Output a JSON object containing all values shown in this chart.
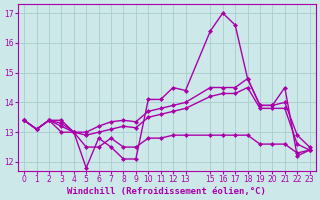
{
  "background_color": "#cce8e8",
  "grid_color": "#aacccc",
  "line_color": "#aa00aa",
  "marker": "D",
  "markersize": 2,
  "linewidth": 1.0,
  "xlabel": "Windchill (Refroidissement éolien,°C)",
  "xlabel_fontsize": 6.5,
  "tick_fontsize": 5.5,
  "xlim": [
    -0.5,
    23.5
  ],
  "ylim": [
    11.7,
    17.3
  ],
  "yticks": [
    12,
    13,
    14,
    15,
    16,
    17
  ],
  "xtick_positions": [
    0,
    1,
    2,
    3,
    4,
    5,
    6,
    7,
    8,
    9,
    10,
    11,
    12,
    13,
    15,
    16,
    17,
    18,
    19,
    20,
    21,
    22,
    23
  ],
  "xtick_labels": [
    "0",
    "1",
    "2",
    "3",
    "4",
    "5",
    "6",
    "7",
    "8",
    "9",
    "10",
    "11",
    "12",
    "13",
    "15",
    "16",
    "17",
    "18",
    "19",
    "20",
    "21",
    "22",
    "23"
  ],
  "series": [
    {
      "x": [
        0,
        1,
        2,
        3,
        4,
        5,
        6,
        7,
        8,
        9,
        10,
        11,
        12,
        13,
        15,
        16,
        17,
        18,
        19,
        20,
        21,
        22,
        23
      ],
      "y": [
        13.4,
        13.1,
        13.4,
        13.4,
        13.0,
        11.8,
        12.8,
        12.5,
        12.1,
        12.1,
        14.1,
        14.1,
        14.5,
        14.4,
        16.4,
        17.0,
        16.6,
        14.8,
        13.9,
        13.9,
        14.5,
        12.2,
        12.4
      ]
    },
    {
      "x": [
        0,
        1,
        2,
        3,
        4,
        5,
        6,
        7,
        8,
        9,
        10,
        11,
        12,
        13,
        15,
        16,
        17,
        18,
        19,
        20,
        21,
        22,
        23
      ],
      "y": [
        13.4,
        13.1,
        13.4,
        13.3,
        13.0,
        13.0,
        13.2,
        13.35,
        13.4,
        13.35,
        13.7,
        13.8,
        13.9,
        14.0,
        14.5,
        14.5,
        14.5,
        14.8,
        13.9,
        13.9,
        14.0,
        12.9,
        12.5
      ]
    },
    {
      "x": [
        0,
        1,
        2,
        3,
        4,
        5,
        6,
        7,
        8,
        9,
        10,
        11,
        12,
        13,
        15,
        16,
        17,
        18,
        19,
        20,
        21,
        22,
        23
      ],
      "y": [
        13.4,
        13.1,
        13.4,
        13.2,
        13.0,
        12.9,
        13.0,
        13.1,
        13.2,
        13.15,
        13.5,
        13.6,
        13.7,
        13.8,
        14.2,
        14.3,
        14.3,
        14.5,
        13.8,
        13.8,
        13.8,
        12.6,
        12.4
      ]
    },
    {
      "x": [
        0,
        1,
        2,
        3,
        4,
        5,
        6,
        7,
        8,
        9,
        10,
        11,
        12,
        13,
        15,
        16,
        17,
        18,
        19,
        20,
        21,
        22,
        23
      ],
      "y": [
        13.4,
        13.1,
        13.4,
        13.0,
        13.0,
        12.5,
        12.5,
        12.8,
        12.5,
        12.5,
        12.8,
        12.8,
        12.9,
        12.9,
        12.9,
        12.9,
        12.9,
        12.9,
        12.6,
        12.6,
        12.6,
        12.3,
        12.4
      ]
    }
  ]
}
